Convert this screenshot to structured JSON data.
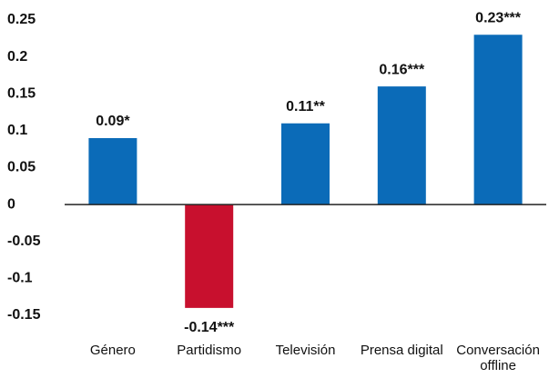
{
  "chart_data": {
    "type": "bar",
    "categories": [
      "Género",
      "Partidismo",
      "Televisión",
      "Prensa digital",
      "Conversación offline"
    ],
    "values": [
      0.09,
      -0.14,
      0.11,
      0.16,
      0.23
    ],
    "value_labels": [
      "0.09*",
      "-0.14***",
      "0.11**",
      "0.16***",
      "0.23***"
    ],
    "colors": [
      "#0b6bb8",
      "#c8102e",
      "#0b6bb8",
      "#0b6bb8",
      "#0b6bb8"
    ],
    "ylim": [
      -0.15,
      0.25
    ],
    "yticks": [
      0.25,
      0.2,
      0.15,
      0.1,
      0.05,
      0,
      -0.05,
      -0.1,
      -0.15
    ],
    "grid": false
  }
}
